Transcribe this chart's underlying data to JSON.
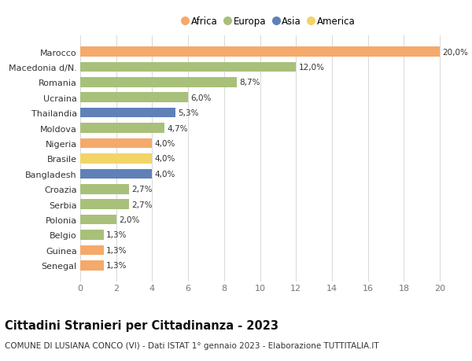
{
  "countries": [
    "Marocco",
    "Macedonia d/N.",
    "Romania",
    "Ucraina",
    "Thailandia",
    "Moldova",
    "Nigeria",
    "Brasile",
    "Bangladesh",
    "Croazia",
    "Serbia",
    "Polonia",
    "Belgio",
    "Guinea",
    "Senegal"
  ],
  "values": [
    20.0,
    12.0,
    8.7,
    6.0,
    5.3,
    4.7,
    4.0,
    4.0,
    4.0,
    2.7,
    2.7,
    2.0,
    1.3,
    1.3,
    1.3
  ],
  "labels": [
    "20,0%",
    "12,0%",
    "8,7%",
    "6,0%",
    "5,3%",
    "4,7%",
    "4,0%",
    "4,0%",
    "4,0%",
    "2,7%",
    "2,7%",
    "2,0%",
    "1,3%",
    "1,3%",
    "1,3%"
  ],
  "continents": [
    "Africa",
    "Europa",
    "Europa",
    "Europa",
    "Asia",
    "Europa",
    "Africa",
    "America",
    "Asia",
    "Europa",
    "Europa",
    "Europa",
    "Europa",
    "Africa",
    "Africa"
  ],
  "continent_colors": {
    "Africa": "#F5A96A",
    "Europa": "#A8C07A",
    "Asia": "#6080B8",
    "America": "#F2D468"
  },
  "legend_order": [
    "Africa",
    "Europa",
    "Asia",
    "America"
  ],
  "title": "Cittadini Stranieri per Cittadinanza - 2023",
  "subtitle": "COMUNE DI LUSIANA CONCO (VI) - Dati ISTAT 1° gennaio 2023 - Elaborazione TUTTITALIA.IT",
  "xlim": [
    0,
    21
  ],
  "xticks": [
    0,
    2,
    4,
    6,
    8,
    10,
    12,
    14,
    16,
    18,
    20
  ],
  "background_color": "#ffffff",
  "grid_color": "#d8d8d8",
  "bar_height": 0.65,
  "label_fontsize": 7.5,
  "title_fontsize": 10.5,
  "subtitle_fontsize": 7.5,
  "ytick_fontsize": 8,
  "xtick_fontsize": 8
}
